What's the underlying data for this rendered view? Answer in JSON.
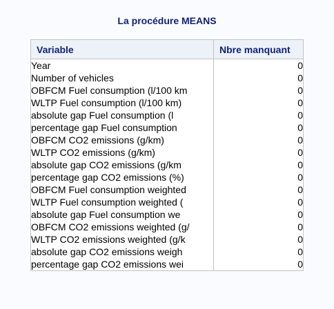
{
  "procedure_title": "La procédure MEANS",
  "table": {
    "headers": {
      "variable": "Variable",
      "missing": "Nbre manquant"
    },
    "rows": [
      {
        "variable": "Year",
        "missing": "0"
      },
      {
        "variable": "Number of vehicles",
        "missing": "0"
      },
      {
        "variable": "OBFCM Fuel consumption (l/100 km",
        "missing": "0"
      },
      {
        "variable": "WLTP Fuel consumption (l/100 km)",
        "missing": "0"
      },
      {
        "variable": "absolute gap Fuel consumption (l",
        "missing": "0"
      },
      {
        "variable": "percentage gap Fuel consumption",
        "missing": "0"
      },
      {
        "variable": "OBFCM CO2 emissions (g/km)",
        "missing": "0"
      },
      {
        "variable": "WLTP CO2 emissions (g/km)",
        "missing": "0"
      },
      {
        "variable": "absolute gap CO2 emissions (g/km",
        "missing": "0"
      },
      {
        "variable": "percentage gap CO2 emissions (%)",
        "missing": "0"
      },
      {
        "variable": "OBFCM Fuel consumption weighted",
        "missing": "0"
      },
      {
        "variable": "WLTP Fuel consumption weighted (",
        "missing": "0"
      },
      {
        "variable": "absolute gap Fuel consumption we",
        "missing": "0"
      },
      {
        "variable": "OBFCM CO2 emissions weighted (g/",
        "missing": "0"
      },
      {
        "variable": "WLTP CO2 emissions weighted (g/k",
        "missing": "0"
      },
      {
        "variable": "absolute gap CO2 emissions weigh",
        "missing": "0"
      },
      {
        "variable": "percentage gap CO2 emissions wei",
        "missing": "0"
      }
    ]
  },
  "colors": {
    "title": "#112277",
    "header_bg": "#edf2f9",
    "border": "#c1c1c1",
    "page_bg": "#fafbfe"
  }
}
